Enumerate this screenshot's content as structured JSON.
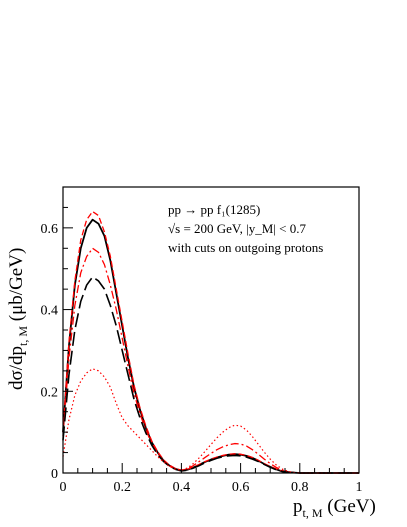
{
  "chart_data": {
    "type": "line",
    "title": "",
    "annotations": [
      "pp → pp f₁(1285)",
      "√s = 200 GeV,  |y_M| < 0.7",
      "with cuts on outgoing protons"
    ],
    "xlabel": {
      "main": "p",
      "sub": "t, M",
      "unit": " (GeV)"
    },
    "ylabel": {
      "prefix": "dσ/dp",
      "sub": "t, M",
      "unit": " (μb/GeV)"
    },
    "xlim": [
      0,
      1
    ],
    "ylim": [
      0,
      0.7
    ],
    "xticks": [
      0,
      0.2,
      0.4,
      0.6,
      0.8,
      1
    ],
    "xtick_labels": [
      "0",
      "0.2",
      "0.4",
      "0.6",
      "0.8",
      "1"
    ],
    "yticks": [
      0,
      0.2,
      0.4,
      0.6
    ],
    "ytick_labels": [
      "0",
      "0.2",
      "0.4",
      "0.6"
    ],
    "grid": false,
    "legend": "none",
    "series": [
      {
        "color": "#000000",
        "dash": "solid",
        "width": 1.8,
        "x": [
          0,
          0.02,
          0.04,
          0.06,
          0.08,
          0.1,
          0.12,
          0.14,
          0.16,
          0.18,
          0.2,
          0.22,
          0.24,
          0.26,
          0.28,
          0.3,
          0.32,
          0.34,
          0.36,
          0.38,
          0.4,
          0.42,
          0.44,
          0.46,
          0.48,
          0.5,
          0.52,
          0.54,
          0.56,
          0.58,
          0.6,
          0.62,
          0.64,
          0.66,
          0.68,
          0.7,
          0.72,
          0.74,
          0.76,
          0.78,
          0.8,
          0.85,
          0.9,
          0.95,
          1.0
        ],
        "y": [
          0.1,
          0.31,
          0.46,
          0.55,
          0.6,
          0.62,
          0.61,
          0.58,
          0.52,
          0.44,
          0.36,
          0.28,
          0.21,
          0.155,
          0.11,
          0.075,
          0.05,
          0.03,
          0.018,
          0.01,
          0.006,
          0.008,
          0.013,
          0.02,
          0.027,
          0.033,
          0.038,
          0.042,
          0.045,
          0.046,
          0.045,
          0.042,
          0.037,
          0.03,
          0.022,
          0.015,
          0.009,
          0.004,
          0.002,
          0.001,
          0,
          0,
          0,
          0,
          0
        ]
      },
      {
        "color": "#ff0000",
        "dash": "dashed",
        "width": 1.3,
        "x": [
          0,
          0.02,
          0.04,
          0.06,
          0.08,
          0.1,
          0.12,
          0.14,
          0.16,
          0.18,
          0.2,
          0.22,
          0.24,
          0.26,
          0.28,
          0.3,
          0.32,
          0.34,
          0.36,
          0.38,
          0.4,
          0.42,
          0.44,
          0.46,
          0.48,
          0.5,
          0.52,
          0.54,
          0.56,
          0.58,
          0.6,
          0.62,
          0.64,
          0.66,
          0.68,
          0.7,
          0.72,
          0.74,
          0.76,
          0.78,
          0.8,
          0.85,
          0.9,
          0.95,
          1.0
        ],
        "y": [
          0.1,
          0.32,
          0.47,
          0.57,
          0.62,
          0.64,
          0.63,
          0.59,
          0.53,
          0.45,
          0.37,
          0.29,
          0.215,
          0.16,
          0.115,
          0.078,
          0.052,
          0.032,
          0.019,
          0.011,
          0.007,
          0.009,
          0.014,
          0.021,
          0.028,
          0.034,
          0.039,
          0.043,
          0.046,
          0.047,
          0.046,
          0.043,
          0.038,
          0.031,
          0.023,
          0.016,
          0.01,
          0.005,
          0.002,
          0.001,
          0,
          0,
          0,
          0,
          0
        ]
      },
      {
        "color": "#ff0000",
        "dash": "dashdot",
        "width": 1.3,
        "x": [
          0,
          0.02,
          0.04,
          0.06,
          0.08,
          0.1,
          0.12,
          0.14,
          0.16,
          0.18,
          0.2,
          0.22,
          0.24,
          0.26,
          0.28,
          0.3,
          0.32,
          0.34,
          0.36,
          0.38,
          0.4,
          0.42,
          0.44,
          0.46,
          0.48,
          0.5,
          0.52,
          0.54,
          0.56,
          0.58,
          0.6,
          0.62,
          0.64,
          0.66,
          0.68,
          0.7,
          0.72,
          0.74,
          0.76,
          0.78,
          0.8,
          0.85,
          0.9,
          0.95,
          1.0
        ],
        "y": [
          0.09,
          0.28,
          0.41,
          0.49,
          0.53,
          0.55,
          0.54,
          0.51,
          0.46,
          0.4,
          0.33,
          0.26,
          0.195,
          0.145,
          0.105,
          0.072,
          0.048,
          0.029,
          0.017,
          0.01,
          0.007,
          0.01,
          0.018,
          0.028,
          0.038,
          0.048,
          0.057,
          0.064,
          0.069,
          0.072,
          0.071,
          0.066,
          0.057,
          0.046,
          0.034,
          0.023,
          0.014,
          0.007,
          0.003,
          0.001,
          0,
          0,
          0,
          0,
          0
        ]
      },
      {
        "color": "#000000",
        "dash": "longdash",
        "width": 1.6,
        "x": [
          0,
          0.02,
          0.04,
          0.06,
          0.08,
          0.1,
          0.12,
          0.14,
          0.16,
          0.18,
          0.2,
          0.22,
          0.24,
          0.26,
          0.28,
          0.3,
          0.32,
          0.34,
          0.36,
          0.38,
          0.4,
          0.42,
          0.44,
          0.46,
          0.48,
          0.5,
          0.52,
          0.54,
          0.56,
          0.58,
          0.6,
          0.62,
          0.64,
          0.66,
          0.68,
          0.7,
          0.72,
          0.74,
          0.76,
          0.78,
          0.8,
          0.85,
          0.9,
          0.95,
          1.0
        ],
        "y": [
          0.08,
          0.24,
          0.35,
          0.42,
          0.46,
          0.48,
          0.47,
          0.45,
          0.41,
          0.36,
          0.3,
          0.24,
          0.18,
          0.135,
          0.098,
          0.068,
          0.045,
          0.028,
          0.016,
          0.009,
          0.005,
          0.007,
          0.012,
          0.018,
          0.025,
          0.031,
          0.036,
          0.04,
          0.042,
          0.043,
          0.042,
          0.039,
          0.034,
          0.028,
          0.021,
          0.014,
          0.008,
          0.004,
          0.002,
          0.001,
          0,
          0,
          0,
          0,
          0
        ]
      },
      {
        "color": "#ff0000",
        "dash": "dotted",
        "width": 1.2,
        "x": [
          0,
          0.02,
          0.04,
          0.06,
          0.08,
          0.1,
          0.12,
          0.14,
          0.16,
          0.18,
          0.2,
          0.22,
          0.24,
          0.26,
          0.28,
          0.3,
          0.32,
          0.34,
          0.36,
          0.38,
          0.4,
          0.42,
          0.44,
          0.46,
          0.48,
          0.5,
          0.52,
          0.54,
          0.56,
          0.58,
          0.6,
          0.62,
          0.64,
          0.66,
          0.68,
          0.7,
          0.72,
          0.74,
          0.76,
          0.78,
          0.8,
          0.85,
          0.9,
          0.95,
          1.0
        ],
        "y": [
          0.04,
          0.13,
          0.19,
          0.225,
          0.245,
          0.255,
          0.25,
          0.235,
          0.21,
          0.17,
          0.135,
          0.115,
          0.1,
          0.085,
          0.07,
          0.055,
          0.04,
          0.027,
          0.016,
          0.009,
          0.007,
          0.012,
          0.023,
          0.037,
          0.053,
          0.07,
          0.086,
          0.1,
          0.111,
          0.117,
          0.115,
          0.105,
          0.089,
          0.07,
          0.051,
          0.034,
          0.02,
          0.01,
          0.004,
          0.001,
          0,
          0,
          0,
          0,
          0
        ]
      }
    ]
  }
}
